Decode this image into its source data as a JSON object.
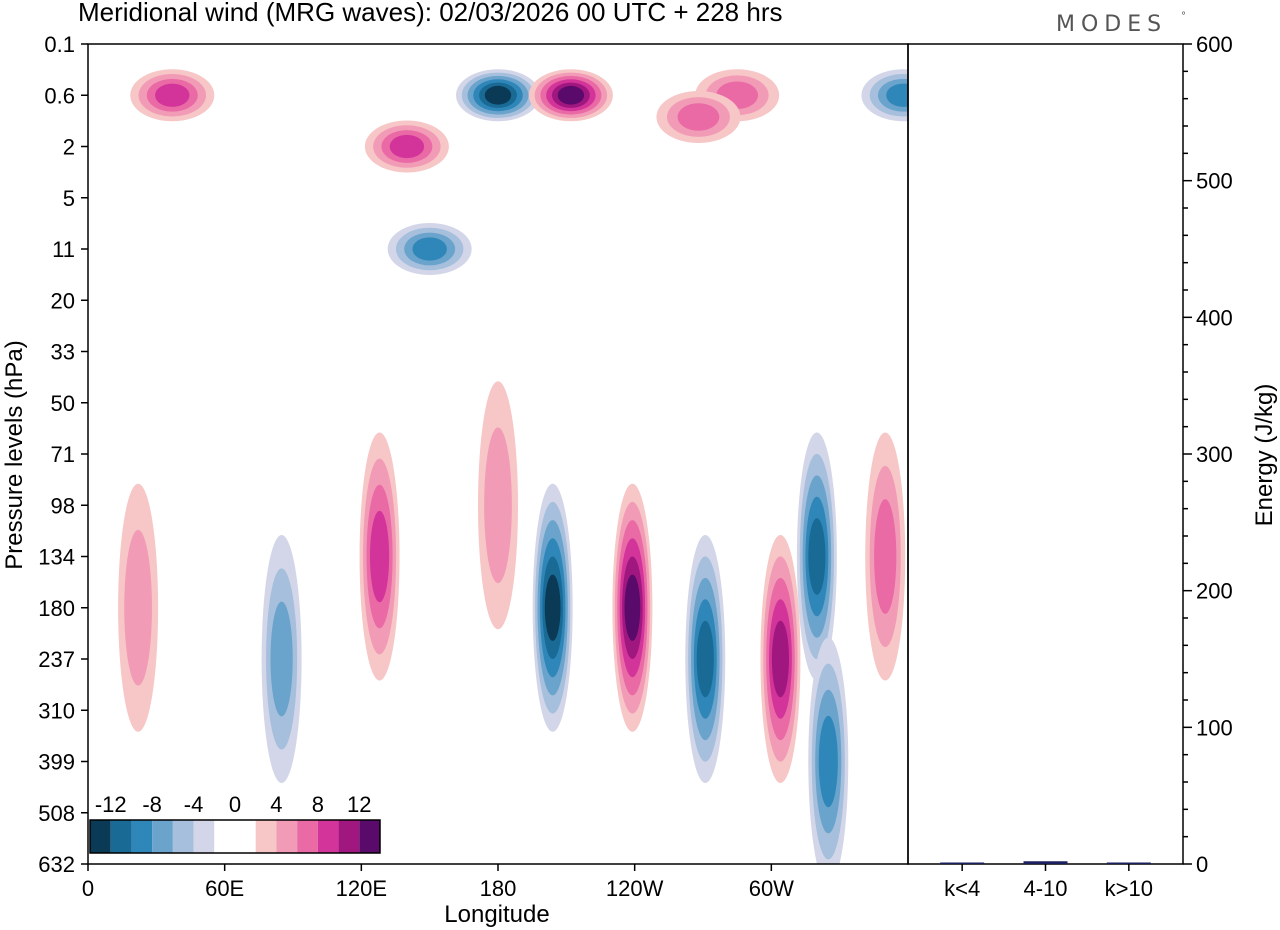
{
  "brand": "MODES",
  "brand_mark": "°",
  "chart_data": [
    {
      "type": "heatmap",
      "title": "Meridional wind (MRG waves):  02/03/2026  00 UTC  + 228 hrs",
      "xlabel": "Longitude",
      "ylabel": "Pressure levels (hPa)",
      "x_ticks": [
        "0",
        "60E",
        "120E",
        "180",
        "120W",
        "60W"
      ],
      "x_tick_values": [
        0,
        60,
        120,
        180,
        240,
        300
      ],
      "xlim": [
        0,
        360
      ],
      "y_ticks": [
        "0.1",
        "0.6",
        "2",
        "5",
        "11",
        "20",
        "33",
        "50",
        "71",
        "98",
        "134",
        "180",
        "237",
        "310",
        "399",
        "508",
        "632"
      ],
      "colorbar": {
        "labels": [
          "-12",
          "-8",
          "-4",
          "0",
          "4",
          "8",
          "12"
        ],
        "label_values": [
          -12,
          -8,
          -4,
          0,
          4,
          8,
          12
        ],
        "range": [
          -14,
          14
        ],
        "bins": [
          {
            "min": -14,
            "max": -12,
            "color": "#0a3a55"
          },
          {
            "min": -12,
            "max": -10,
            "color": "#1a6a96"
          },
          {
            "min": -10,
            "max": -8,
            "color": "#2f86b8"
          },
          {
            "min": -8,
            "max": -6,
            "color": "#6aa3cc"
          },
          {
            "min": -6,
            "max": -4,
            "color": "#a5bfdc"
          },
          {
            "min": -4,
            "max": -2,
            "color": "#d2d6e8"
          },
          {
            "min": -2,
            "max": 2,
            "color": "#ffffff"
          },
          {
            "min": 2,
            "max": 4,
            "color": "#f7c6c6"
          },
          {
            "min": 4,
            "max": 6,
            "color": "#f29bb6"
          },
          {
            "min": 6,
            "max": 8,
            "color": "#ea6aa6"
          },
          {
            "min": 8,
            "max": 10,
            "color": "#d2349a"
          },
          {
            "min": 10,
            "max": 12,
            "color": "#a0187f"
          },
          {
            "min": 12,
            "max": 14,
            "color": "#5a0a6a"
          }
        ]
      },
      "features": [
        {
          "lon": 180,
          "level": "0.6",
          "value": -14,
          "note": "strong negative core"
        },
        {
          "lon": 212,
          "level": "0.6",
          "value": 14,
          "note": "strong positive core"
        },
        {
          "lon": 37,
          "level": "0.6",
          "value": 9
        },
        {
          "lon": 140,
          "level": "2",
          "value": 9
        },
        {
          "lon": 150,
          "level": "11",
          "value": -10
        },
        {
          "lon": 358,
          "level": "0.6",
          "value": -9
        },
        {
          "lon": 285,
          "level": "0.6",
          "value": 8
        },
        {
          "lon": 268,
          "level": "1",
          "value": 7
        },
        {
          "lon": 204,
          "level": "180",
          "value": -13
        },
        {
          "lon": 239,
          "level": "180",
          "value": 14
        },
        {
          "lon": 271,
          "level": "237",
          "value": -12
        },
        {
          "lon": 304,
          "level": "237",
          "value": 11
        },
        {
          "lon": 128,
          "level": "134",
          "value": 10
        },
        {
          "lon": 320,
          "level": "134",
          "value": -11
        },
        {
          "lon": 350,
          "level": "134",
          "value": 8
        },
        {
          "lon": 85,
          "level": "237",
          "value": -8
        },
        {
          "lon": 22,
          "level": "180",
          "value": 5
        },
        {
          "lon": 325,
          "level": "399",
          "value": -9
        },
        {
          "lon": 180,
          "level": "98",
          "value": 5
        }
      ]
    },
    {
      "type": "bar",
      "categories": [
        "k<4",
        "4-10",
        "k>10"
      ],
      "values": [
        0,
        2,
        0
      ],
      "ylabel": "Energy (J/kg)",
      "ylim": [
        0,
        600
      ],
      "y_ticks": [
        "0",
        "100",
        "200",
        "300",
        "400",
        "500",
        "600"
      ],
      "y_tick_values": [
        0,
        100,
        200,
        300,
        400,
        500,
        600
      ],
      "bar_color": "#1b1f5e"
    }
  ]
}
